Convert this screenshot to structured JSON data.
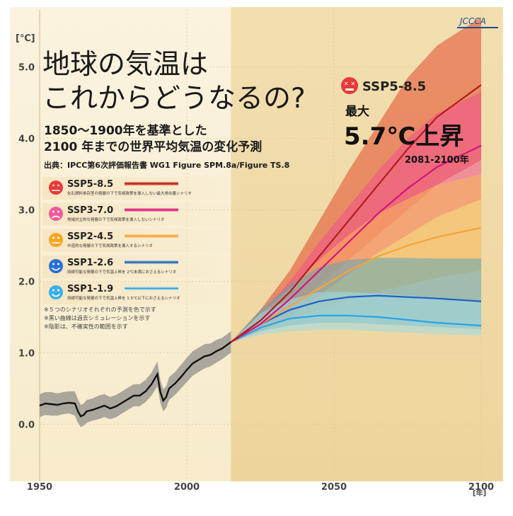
{
  "chart_data": {
    "type": "line",
    "title_line1": "地球の気温は",
    "title_line2": "これからどうなるの?",
    "subtitle_line1": "1850～1900年を基準とした",
    "subtitle_line2": "2100 年までの世界平均気温の変化予測",
    "source": "出典：IPCC第6次評価報告書 WG1 Figure SPM.8a/Figure TS.8",
    "logo": "JCCCA",
    "ylabel": "[℃]",
    "xlabel": "[年]",
    "xlim": [
      1950,
      2100
    ],
    "ylim": [
      -0.8,
      5.8
    ],
    "x_ticks": [
      "1950",
      "2000",
      "2050",
      "2100"
    ],
    "y_ticks": [
      "0.0",
      "1.0",
      "2.0",
      "3.0",
      "4.0",
      "5.0"
    ],
    "historical_end_year": 2015,
    "callout": {
      "scenario": "SSP5-8.5",
      "label": "最大",
      "value": "5.7℃上昇",
      "period": "2081-2100年"
    },
    "historical": {
      "name": "historical",
      "color": "#111111",
      "band_color": "#9e9a93",
      "x": [
        1950,
        1952,
        1954,
        1956,
        1958,
        1960,
        1962,
        1963,
        1964,
        1965,
        1966,
        1968,
        1970,
        1972,
        1974,
        1976,
        1978,
        1980,
        1982,
        1984,
        1986,
        1988,
        1990,
        1991,
        1992,
        1993,
        1994,
        1996,
        1998,
        2000,
        2002,
        2004,
        2006,
        2008,
        2010,
        2012,
        2014,
        2015
      ],
      "y": [
        0.26,
        0.29,
        0.28,
        0.27,
        0.29,
        0.3,
        0.29,
        0.18,
        0.11,
        0.13,
        0.18,
        0.2,
        0.23,
        0.26,
        0.22,
        0.25,
        0.3,
        0.35,
        0.4,
        0.4,
        0.46,
        0.56,
        0.7,
        0.45,
        0.33,
        0.38,
        0.5,
        0.57,
        0.66,
        0.76,
        0.85,
        0.9,
        0.95,
        0.97,
        1.02,
        1.06,
        1.12,
        1.15
      ],
      "lo": [
        0.1,
        0.13,
        0.12,
        0.12,
        0.14,
        0.15,
        0.12,
        0.02,
        -0.04,
        -0.02,
        0.02,
        0.05,
        0.07,
        0.1,
        0.07,
        0.1,
        0.15,
        0.2,
        0.25,
        0.25,
        0.31,
        0.4,
        0.53,
        0.3,
        0.18,
        0.23,
        0.34,
        0.41,
        0.5,
        0.59,
        0.68,
        0.73,
        0.78,
        0.81,
        0.86,
        0.91,
        0.97,
        1.0
      ],
      "hi": [
        0.42,
        0.45,
        0.45,
        0.43,
        0.45,
        0.46,
        0.46,
        0.35,
        0.27,
        0.29,
        0.34,
        0.36,
        0.4,
        0.42,
        0.38,
        0.41,
        0.46,
        0.51,
        0.56,
        0.56,
        0.62,
        0.72,
        0.88,
        0.62,
        0.49,
        0.53,
        0.66,
        0.73,
        0.83,
        0.93,
        1.02,
        1.07,
        1.12,
        1.13,
        1.18,
        1.21,
        1.27,
        1.3
      ]
    },
    "series": [
      {
        "name": "SSP5-8.5",
        "description": "化石燃料依存型の発展の下で気候政策を導入しない最大排出量シナリオ",
        "color": "#b31b1b",
        "band_color": "#e24a2c",
        "face": "#e53a3a",
        "mouth": "x",
        "x": [
          2015,
          2025,
          2035,
          2045,
          2055,
          2065,
          2075,
          2085,
          2100
        ],
        "y": [
          1.15,
          1.45,
          1.85,
          2.35,
          2.85,
          3.35,
          3.85,
          4.3,
          4.75
        ],
        "lo": [
          1.15,
          1.35,
          1.6,
          1.95,
          2.3,
          2.65,
          3.0,
          3.35,
          3.7
        ],
        "hi": [
          1.15,
          1.6,
          2.15,
          2.85,
          3.55,
          4.2,
          4.85,
          5.3,
          5.7
        ]
      },
      {
        "name": "SSP3-7.0",
        "description": "地域対立的な発展の下で気候政策を導入しないシナリオ",
        "color": "#d6147e",
        "band_color": "#f0508c",
        "face": "#ee5b9a",
        "mouth": "sad",
        "x": [
          2015,
          2025,
          2035,
          2045,
          2055,
          2065,
          2075,
          2085,
          2100
        ],
        "y": [
          1.15,
          1.4,
          1.75,
          2.15,
          2.55,
          2.95,
          3.3,
          3.6,
          3.9
        ],
        "lo": [
          1.15,
          1.3,
          1.5,
          1.8,
          2.1,
          2.4,
          2.65,
          2.9,
          3.15
        ],
        "hi": [
          1.15,
          1.55,
          2.0,
          2.55,
          3.05,
          3.55,
          4.0,
          4.35,
          4.65
        ]
      },
      {
        "name": "SSP2-4.5",
        "description": "中道的な発展の下で気候政策を導入するシナリオ",
        "color": "#f6a23a",
        "band_color": "#f7b85a",
        "face": "#f5a623",
        "mouth": "flat",
        "x": [
          2015,
          2025,
          2035,
          2045,
          2055,
          2065,
          2075,
          2085,
          2100
        ],
        "y": [
          1.15,
          1.4,
          1.65,
          1.9,
          2.15,
          2.35,
          2.5,
          2.62,
          2.75
        ],
        "lo": [
          1.15,
          1.3,
          1.45,
          1.6,
          1.75,
          1.85,
          1.95,
          2.05,
          2.15
        ],
        "hi": [
          1.15,
          1.55,
          1.9,
          2.3,
          2.65,
          2.95,
          3.15,
          3.35,
          3.5
        ]
      },
      {
        "name": "SSP1-2.6",
        "description": "持続可能な発展の下で気温上昇を 2℃未満におさえるシナリオ",
        "color": "#1c5fc8",
        "band_color": "#5fa6b8",
        "face": "#2a6fd6",
        "mouth": "smile",
        "x": [
          2015,
          2025,
          2035,
          2045,
          2055,
          2065,
          2075,
          2085,
          2100
        ],
        "y": [
          1.15,
          1.4,
          1.6,
          1.72,
          1.78,
          1.8,
          1.78,
          1.76,
          1.72
        ],
        "lo": [
          1.15,
          1.3,
          1.38,
          1.42,
          1.42,
          1.4,
          1.38,
          1.36,
          1.33
        ],
        "hi": [
          1.15,
          1.6,
          1.95,
          2.2,
          2.3,
          2.33,
          2.33,
          2.32,
          2.32
        ]
      },
      {
        "name": "SSP1-1.9",
        "description": "持続可能な発展の下で気温上昇を 1.5℃以下におさえるシナリオ",
        "color": "#2aa3e6",
        "band_color": "#9fdbe6",
        "face": "#3ab0ea",
        "mouth": "grin",
        "x": [
          2015,
          2025,
          2035,
          2045,
          2055,
          2065,
          2075,
          2085,
          2100
        ],
        "y": [
          1.15,
          1.35,
          1.48,
          1.52,
          1.52,
          1.5,
          1.46,
          1.42,
          1.38
        ],
        "lo": [
          1.15,
          1.25,
          1.3,
          1.32,
          1.32,
          1.3,
          1.28,
          1.26,
          1.24
        ],
        "hi": [
          1.15,
          1.55,
          1.75,
          1.85,
          1.85,
          1.83,
          1.8,
          1.76,
          1.7
        ]
      }
    ],
    "notes": [
      "※５つのシナリオそれぞれの予測を色で示す",
      "※黒い曲線は過去シミュレーションを示す",
      "※陰影は、不確実性の範囲を示す"
    ]
  }
}
